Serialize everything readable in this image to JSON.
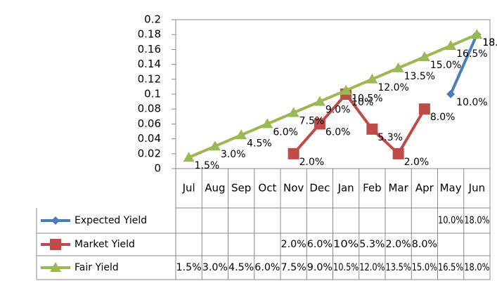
{
  "chart_data": {
    "type": "line",
    "categories": [
      "Jul",
      "Aug",
      "Sep",
      "Oct",
      "Nov",
      "Dec",
      "Jan",
      "Feb",
      "Mar",
      "Apr",
      "May",
      "Jun"
    ],
    "series": [
      {
        "name": "Expected Yield",
        "color": "#4a7ebb",
        "marker": "diamond",
        "values": [
          null,
          null,
          null,
          null,
          null,
          null,
          null,
          null,
          null,
          null,
          0.1,
          0.18
        ],
        "value_labels": [
          null,
          null,
          null,
          null,
          null,
          null,
          null,
          null,
          null,
          null,
          "10.0%",
          "18.0%"
        ]
      },
      {
        "name": "Market Yield",
        "color": "#be4b48",
        "marker": "square",
        "values": [
          null,
          null,
          null,
          null,
          0.02,
          0.06,
          0.1,
          0.053,
          0.02,
          0.08,
          null,
          null
        ],
        "value_labels": [
          null,
          null,
          null,
          null,
          "2.0%",
          "6.0%",
          "10%",
          "5.3%",
          "2.0%",
          "8.0%",
          null,
          null
        ]
      },
      {
        "name": "Fair Yield",
        "color": "#98b954",
        "marker": "triangle",
        "values": [
          0.015,
          0.03,
          0.045,
          0.06,
          0.075,
          0.09,
          0.105,
          0.12,
          0.135,
          0.15,
          0.165,
          0.18
        ],
        "value_labels": [
          "1.5%",
          "3.0%",
          "4.5%",
          "6.0%",
          "7.5%",
          "9.0%",
          "10.5%",
          "12.0%",
          "13.5%",
          "15.0%",
          "16.5%",
          "18.0%"
        ]
      }
    ],
    "ylim": [
      0,
      0.2
    ],
    "yticks": [
      0,
      0.02,
      0.04,
      0.06,
      0.08,
      0.1,
      0.12,
      0.14,
      0.16,
      0.18,
      0.2
    ],
    "grid": false,
    "data_table": true
  }
}
